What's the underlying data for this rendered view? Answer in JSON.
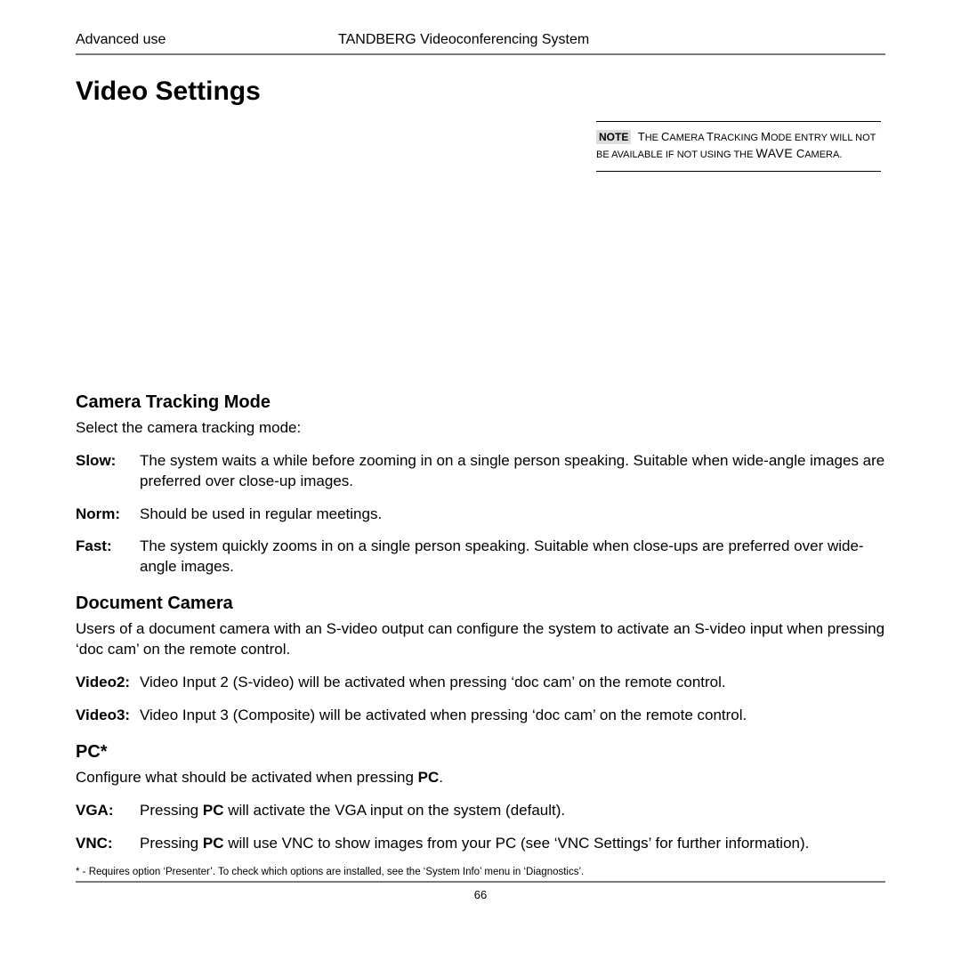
{
  "header": {
    "left": "Advanced use",
    "right": "TANDBERG Videoconferencing System"
  },
  "title": "Video Settings",
  "note": {
    "label": "NOTE",
    "line1_pre": "T",
    "line1_sc": "he ",
    "line1_cap": "C",
    "line1_sc2": "amera ",
    "line1_cap2": "T",
    "line1_sc3": "racking ",
    "line1_cap3": "M",
    "line1_sc4": "ode entry will not be available if not using the ",
    "line1_wave": "WAVE",
    "line2_cap": "C",
    "line2_sc": "amera."
  },
  "sections": {
    "tracking": {
      "heading": "Camera Tracking Mode",
      "intro": "Select the camera tracking mode:",
      "items": [
        {
          "term": "Slow:",
          "desc": "The system waits a while before zooming in on a single person speaking. Suitable when wide-angle images are preferred over close-up images."
        },
        {
          "term": "Norm:",
          "desc": "Should be used in regular meetings."
        },
        {
          "term": "Fast:",
          "desc": "The system quickly zooms in on a single person speaking. Suitable when close-ups are preferred over wide-angle images."
        }
      ]
    },
    "doccam": {
      "heading": "Document Camera",
      "intro": "Users of a document camera with an S-video output can configure the system to activate an S-video input when pressing ‘doc cam’ on the remote control.",
      "items": [
        {
          "term": "Video2:",
          "desc": "Video Input 2 (S-video) will be activated when pressing ‘doc cam’ on the remote control."
        },
        {
          "term": "Video3:",
          "desc": "Video Input 3 (Composite) will be activated when pressing ‘doc cam’ on the remote control."
        }
      ]
    },
    "pc": {
      "heading": "PC*",
      "intro_pre": "Configure what should be activated when pressing ",
      "intro_bold": "PC",
      "intro_post": ".",
      "items": [
        {
          "term": "VGA:",
          "pre": "Pressing ",
          "bold": "PC",
          "post": " will activate the VGA input on the system (default)."
        },
        {
          "term": "VNC:",
          "pre": "Pressing ",
          "bold": "PC",
          "post": " will use VNC to show images from your PC (see ‘VNC Settings’ for further information)."
        }
      ]
    }
  },
  "footnote": "* - Requires option ‘Presenter’. To check which options are installed, see the ‘System Info’ menu in ‘Diagnostics’.",
  "pageNumber": "66",
  "colors": {
    "rule": "#7a7a7a",
    "noteShade": "#dddddd"
  }
}
